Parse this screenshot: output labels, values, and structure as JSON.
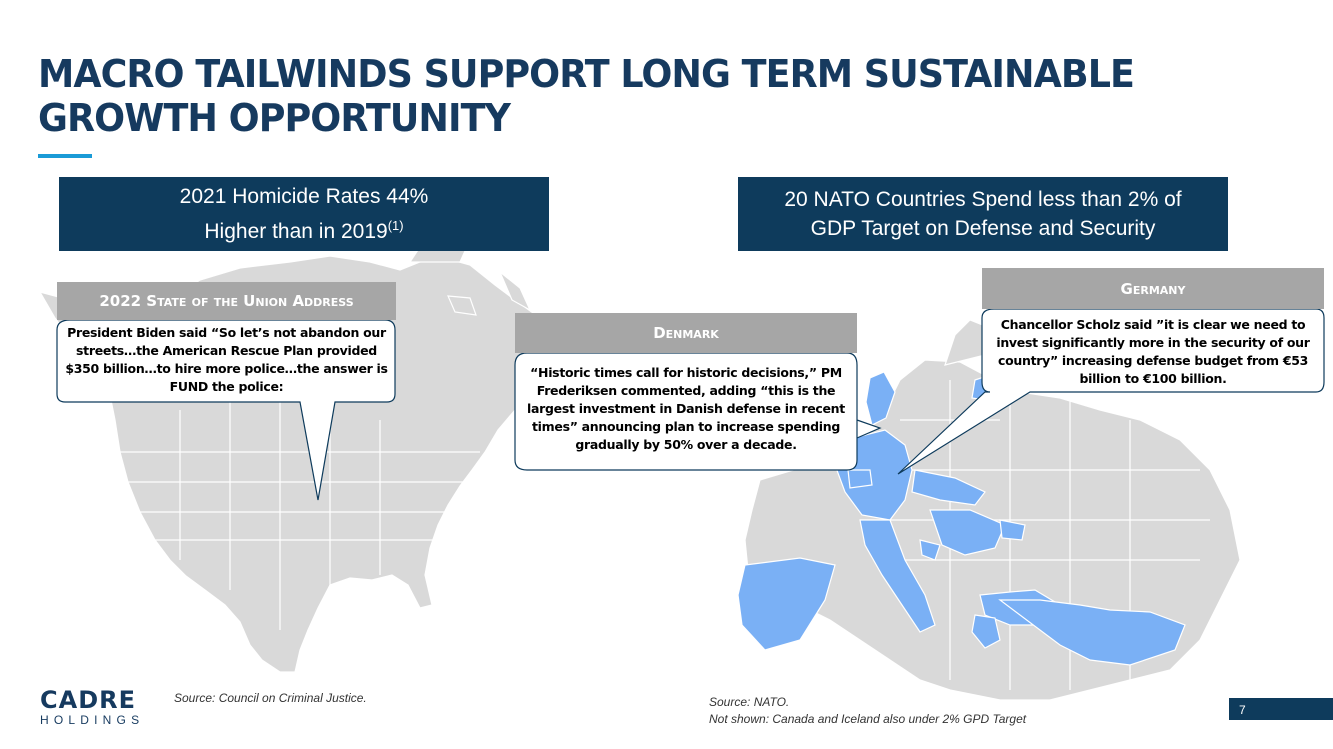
{
  "slide": {
    "title_line1": "MACRO TAILWINDS SUPPORT LONG TERM SUSTAINABLE",
    "title_line2": "GROWTH OPPORTUNITY",
    "accent_color": "#1a9bd7",
    "navy_color": "#0e3b5c"
  },
  "left_panel": {
    "banner_line1": "2021 Homicide Rates 44%",
    "banner_line2": "Higher than in 2019",
    "banner_footnote": "(1)",
    "callout_header": "2022 State of the Union Address",
    "callout_text": "President Biden said “So let’s not abandon our streets…the American Rescue Plan provided $350 billion…to hire more police…the answer is FUND the police:",
    "map_icon": "north-america-map",
    "source": "Source: Council on Criminal Justice."
  },
  "right_panel": {
    "banner_line1": "20 NATO Countries Spend less than 2% of",
    "banner_line2": "GDP Target on Defense and Security",
    "denmark_header": "Denmark",
    "denmark_text": "“Historic times call for historic decisions,” PM Frederiksen commented, adding “this is the largest investment in Danish defense in recent times” announcing plan to increase spending gradually by 50% over a decade.",
    "germany_header": "Germany",
    "germany_text": "Chancellor Scholz said ”it is clear we need to invest significantly more in the security of our country” increasing defense budget from €53 billion to €100 billion.",
    "map_icon": "europe-map",
    "highlight_color": "#7ab0f5",
    "source_line1": "Source: NATO.",
    "source_line2": "Not shown: Canada and Iceland also under 2% GPD Target"
  },
  "logo": {
    "top": "CADRE",
    "bottom": "HOLDINGS"
  },
  "page_number": "7"
}
